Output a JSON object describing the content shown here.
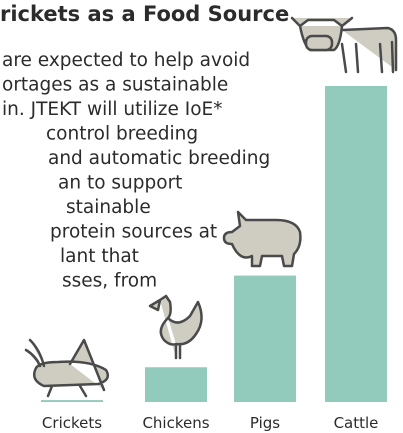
{
  "chart_data": {
    "type": "bar",
    "title": "rickets as a Food Source",
    "body": [
      "are expected to help avoid",
      "ortages as a sustainable",
      "in. JTEKT will utilize IoE*",
      "control breeding",
      "and automatic breeding",
      "an to support",
      "stainable",
      "protein sources at",
      "lant that",
      "sses, from"
    ],
    "categories": [
      "Crickets",
      "Chickens",
      "Pigs",
      "Cattle"
    ],
    "values": [
      0.6,
      11,
      40,
      100
    ],
    "color": "#92cbbb",
    "ylim": [
      0,
      100
    ]
  }
}
